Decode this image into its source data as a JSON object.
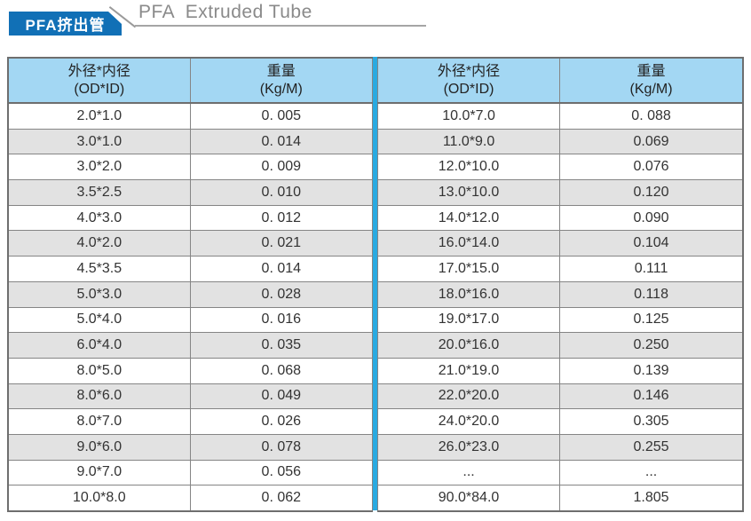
{
  "header": {
    "badge": "PFA挤出管",
    "title": "PFA  Extruded Tube"
  },
  "table": {
    "columns": {
      "size_zh": "外径*内径",
      "size_en": "(OD*ID)",
      "weight_zh": "重量",
      "weight_en": "(Kg/M)"
    },
    "left_rows": [
      {
        "size": "2.0*1.0",
        "weight": "0. 005"
      },
      {
        "size": "3.0*1.0",
        "weight": "0. 014"
      },
      {
        "size": "3.0*2.0",
        "weight": "0. 009"
      },
      {
        "size": "3.5*2.5",
        "weight": "0. 010"
      },
      {
        "size": "4.0*3.0",
        "weight": "0. 012"
      },
      {
        "size": "4.0*2.0",
        "weight": "0. 021"
      },
      {
        "size": "4.5*3.5",
        "weight": "0. 014"
      },
      {
        "size": "5.0*3.0",
        "weight": "0. 028"
      },
      {
        "size": "5.0*4.0",
        "weight": "0. 016"
      },
      {
        "size": "6.0*4.0",
        "weight": "0. 035"
      },
      {
        "size": "8.0*5.0",
        "weight": "0. 068"
      },
      {
        "size": "8.0*6.0",
        "weight": "0. 049"
      },
      {
        "size": "8.0*7.0",
        "weight": "0. 026"
      },
      {
        "size": "9.0*6.0",
        "weight": "0. 078"
      },
      {
        "size": "9.0*7.0",
        "weight": "0. 056"
      },
      {
        "size": "10.0*8.0",
        "weight": "0. 062"
      }
    ],
    "right_rows": [
      {
        "size": "10.0*7.0",
        "weight": "0. 088"
      },
      {
        "size": "11.0*9.0",
        "weight": "0.069"
      },
      {
        "size": "12.0*10.0",
        "weight": "0.076"
      },
      {
        "size": "13.0*10.0",
        "weight": "0.120"
      },
      {
        "size": "14.0*12.0",
        "weight": "0.090"
      },
      {
        "size": "16.0*14.0",
        "weight": "0.104"
      },
      {
        "size": "17.0*15.0",
        "weight": "0.111"
      },
      {
        "size": "18.0*16.0",
        "weight": "0.118"
      },
      {
        "size": "19.0*17.0",
        "weight": "0.125"
      },
      {
        "size": "20.0*16.0",
        "weight": "0.250"
      },
      {
        "size": "21.0*19.0",
        "weight": "0.139"
      },
      {
        "size": "22.0*20.0",
        "weight": "0.146"
      },
      {
        "size": "24.0*20.0",
        "weight": "0.305"
      },
      {
        "size": "26.0*23.0",
        "weight": "0.255"
      },
      {
        "size": "...",
        "weight": "..."
      },
      {
        "size": "90.0*84.0",
        "weight": "1.805"
      }
    ]
  },
  "colors": {
    "badge_blue": "#1170b6",
    "header_bg": "#a3d7f3",
    "divider_cyan": "#29aae1",
    "row_alt": "#e2e2e2",
    "title_gray": "#8a8a8a"
  }
}
